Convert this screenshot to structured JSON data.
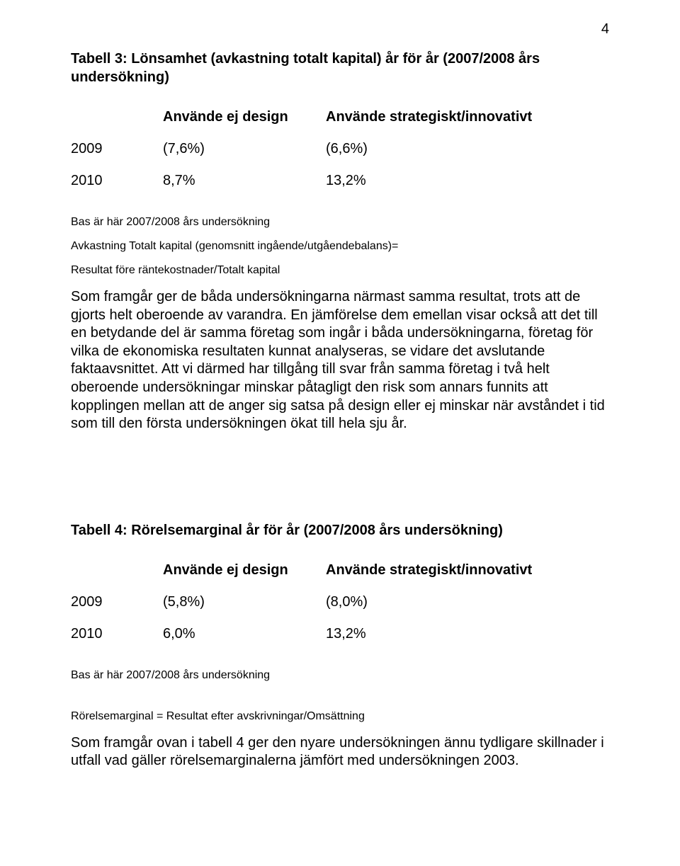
{
  "text_color": "#000000",
  "background_color": "#ffffff",
  "page_number": "4",
  "table3": {
    "type": "table",
    "title": "Tabell 3: Lönsamhet (avkastning totalt kapital) år för år (2007/2008 års undersökning)",
    "columns": [
      "",
      "Använde ej design",
      "Använde strategiskt/innovativt"
    ],
    "rows": [
      [
        "2009",
        "(7,6%)",
        "(6,6%)"
      ],
      [
        "2010",
        "8,7%",
        "13,2%"
      ]
    ],
    "font_size_pt": 15,
    "header_font_weight": "bold"
  },
  "note_bas_1": "Bas är här 2007/2008 års undersökning",
  "note_formula_1a": "Avkastning Totalt kapital (genomsnitt ingående/utgåendebalans)=",
  "note_formula_1b": "Resultat före räntekostnader/Totalt kapital",
  "paragraph_1": "Som framgår ger de båda undersökningarna närmast samma resultat, trots att de gjorts helt oberoende av varandra. En jämförelse dem emellan visar också att det till en betydande del är samma företag som ingår i båda undersökningarna, företag för vilka de ekonomiska resultaten kunnat analyseras, se vidare det avslutande faktaavsnittet. Att vi därmed har tillgång till svar från samma företag i två helt oberoende undersökningar minskar påtagligt den risk som annars funnits att kopplingen mellan att de anger sig satsa på design eller ej minskar när avståndet i tid som till den första undersökningen ökat till hela sju år.",
  "table4": {
    "type": "table",
    "title": "Tabell 4: Rörelsemarginal år för år (2007/2008 års undersökning)",
    "columns": [
      "",
      "Använde ej design",
      "Använde strategiskt/innovativt"
    ],
    "rows": [
      [
        "2009",
        "(5,8%)",
        "(8,0%)"
      ],
      [
        "2010",
        "6,0%",
        "13,2%"
      ]
    ],
    "font_size_pt": 15,
    "header_font_weight": "bold"
  },
  "note_bas_2": "Bas är här 2007/2008 års undersökning",
  "note_formula_2": "Rörelsemarginal = Resultat efter avskrivningar/Omsättning",
  "paragraph_2": "Som framgår ovan i tabell 4 ger den nyare undersökningen ännu tydligare skillnader i utfall vad gäller rörelsemarginalerna jämfört med undersökningen 2003."
}
